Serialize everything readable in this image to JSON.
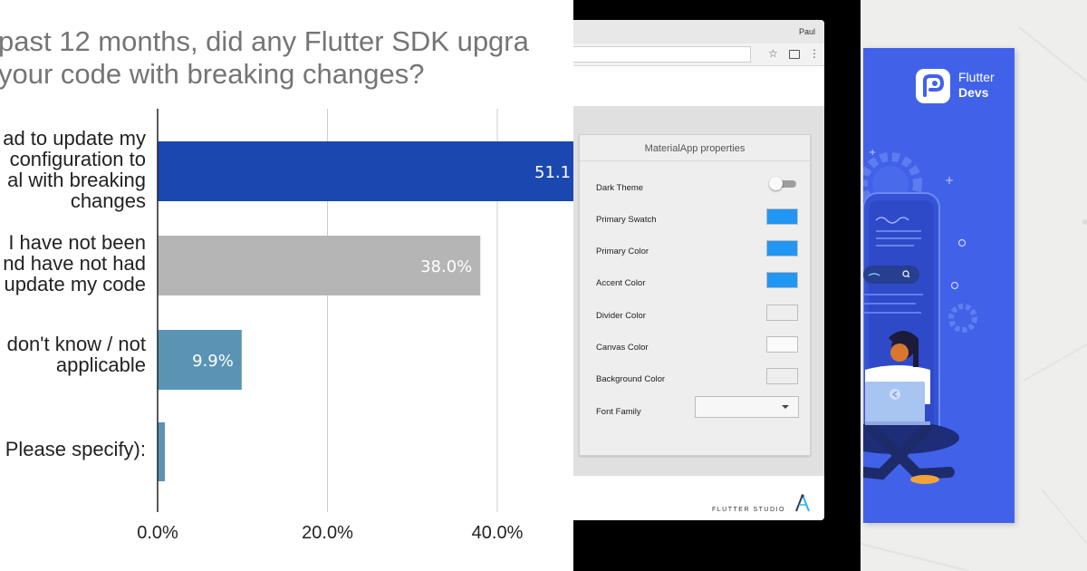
{
  "survey_chart": {
    "title_line1": "past 12 months, did any Flutter SDK upgra",
    "title_line2": "your code with breaking changes?",
    "category_labels": [
      [
        "ad to update my",
        "configuration to",
        "al with breaking",
        "changes"
      ],
      [
        "I have not been",
        "nd have not had",
        "update my code"
      ],
      [
        "don't know / not",
        "applicable"
      ],
      [
        "Please specify):"
      ]
    ],
    "value_labels": [
      "51.1",
      "38.0%",
      "9.9%",
      ""
    ],
    "tick_labels": [
      "0.0%",
      "20.0%",
      "40.0%"
    ]
  },
  "chart_data": {
    "type": "bar",
    "orientation": "horizontal",
    "title": "past 12 months, did any Flutter SDK upgra your code with breaking changes?",
    "categories": [
      "ad to update my configuration to al with breaking changes",
      "I have not been nd have not had update my code",
      "don't know / not applicable",
      "Please specify):"
    ],
    "values": [
      51.1,
      38.0,
      9.9,
      1.0
    ],
    "value_unit": "%",
    "xlim": [
      0,
      47
    ],
    "xticks": [
      0,
      20,
      40
    ],
    "grid": true,
    "colors": [
      "#1a47b0",
      "#b5b5b5",
      "#5b93b4",
      "#5b93b4"
    ]
  },
  "studio": {
    "user_name": "Paul",
    "panel_title": "MaterialApp properties",
    "properties": [
      {
        "label": "Dark Theme",
        "kind": "toggle",
        "value": "off"
      },
      {
        "label": "Primary Swatch",
        "kind": "color",
        "color": "#2196f3"
      },
      {
        "label": "Primary Color",
        "kind": "color",
        "color": "#2196f3"
      },
      {
        "label": "Accent Color",
        "kind": "color",
        "color": "#2196f3"
      },
      {
        "label": "Divider Color",
        "kind": "color",
        "color": "#eeeeee"
      },
      {
        "label": "Canvas Color",
        "kind": "color",
        "color": "#fafafa"
      },
      {
        "label": "Background Color",
        "kind": "color",
        "color": "#eeeeee"
      },
      {
        "label": "Font Family",
        "kind": "select",
        "value": ""
      }
    ],
    "brand": "FLUTTER STUDIO",
    "icons": [
      "star-icon",
      "cast-icon",
      "menu-icon",
      "flutter-studio-logo-icon"
    ]
  },
  "devs": {
    "brand_line1": "Flutter",
    "brand_line2": "Devs",
    "card_color": "#4162e8",
    "icons": [
      "flutter-devs-logo-icon",
      "gear-icon",
      "search-icon",
      "back-arrow-icon"
    ]
  }
}
